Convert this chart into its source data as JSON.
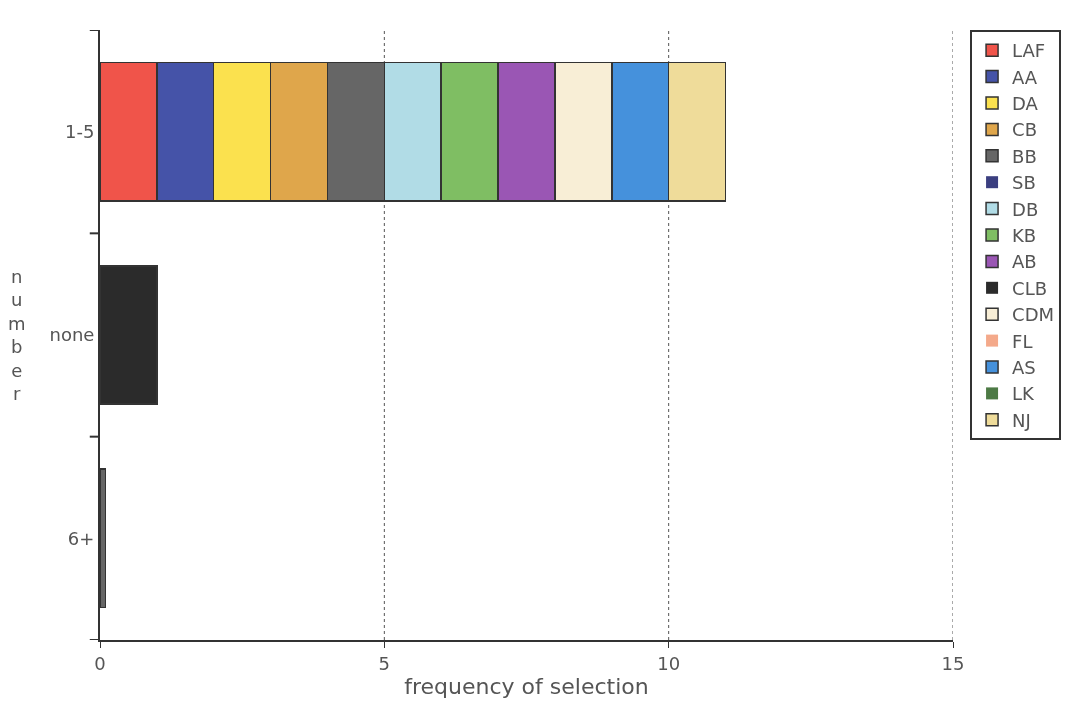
{
  "chart_data": {
    "type": "bar",
    "orientation": "horizontal",
    "stacked": true,
    "categories": [
      "1-5",
      "none",
      "6+"
    ],
    "xlabel": "frequency of selection",
    "ylabel": "number",
    "xlim": [
      0,
      15
    ],
    "xticks": [
      0,
      5,
      10,
      15
    ],
    "grid": "x",
    "legend": "right",
    "series": [
      {
        "name": "LAF",
        "color": "#f0544a",
        "values": [
          1,
          0,
          0
        ]
      },
      {
        "name": "AA",
        "color": "#4553a8",
        "values": [
          1,
          0,
          0
        ]
      },
      {
        "name": "DA",
        "color": "#fbe14e",
        "values": [
          1,
          0,
          0
        ]
      },
      {
        "name": "CB",
        "color": "#dfa64b",
        "values": [
          1,
          0,
          0
        ]
      },
      {
        "name": "BB",
        "color": "#666666",
        "values": [
          1,
          0,
          0.1
        ]
      },
      {
        "name": "SB",
        "color": "#3b3f80",
        "values": [
          0,
          0,
          0
        ]
      },
      {
        "name": "DB",
        "color": "#b1dce6",
        "values": [
          1,
          0,
          0
        ]
      },
      {
        "name": "KB",
        "color": "#7fbe63",
        "values": [
          1,
          0,
          0
        ]
      },
      {
        "name": "AB",
        "color": "#9a56b4",
        "values": [
          1,
          0,
          0
        ]
      },
      {
        "name": "CLB",
        "color": "#2b2b2b",
        "values": [
          0,
          1,
          0
        ]
      },
      {
        "name": "CDM",
        "color": "#f8eed6",
        "values": [
          1,
          0,
          0
        ]
      },
      {
        "name": "FL",
        "color": "#f4a98a",
        "values": [
          0,
          0,
          0
        ]
      },
      {
        "name": "AS",
        "color": "#4591dc",
        "values": [
          1,
          0,
          0
        ]
      },
      {
        "name": "LK",
        "color": "#4d7a45",
        "values": [
          0,
          0,
          0
        ]
      },
      {
        "name": "NJ",
        "color": "#efdc9a",
        "values": [
          1,
          0,
          0
        ]
      }
    ]
  }
}
